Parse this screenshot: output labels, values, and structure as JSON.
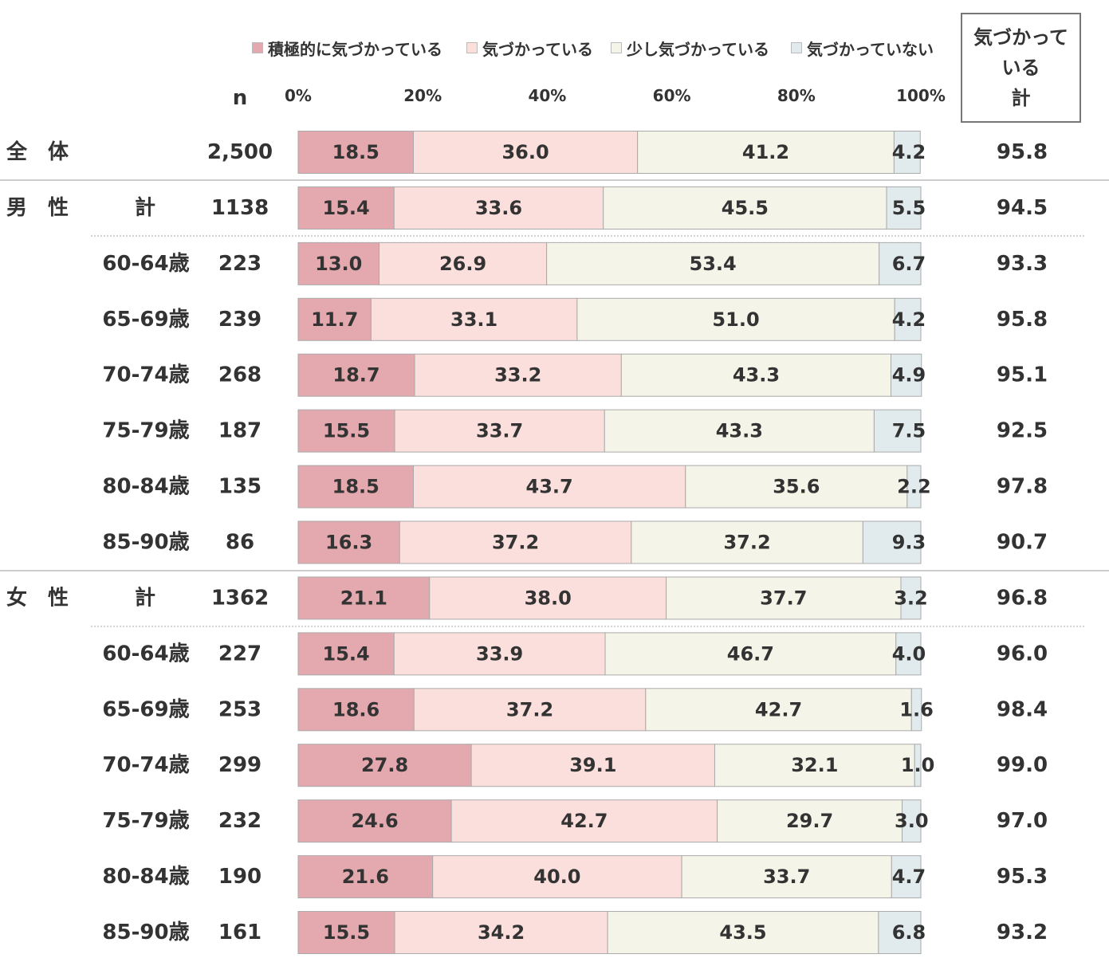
{
  "legend": [
    {
      "label": "積極的に気づかっている",
      "color": "#e4a9ae"
    },
    {
      "label": "気づかっている",
      "color": "#fbdfdc"
    },
    {
      "label": "少し気づかっている",
      "color": "#f4f4e8"
    },
    {
      "label": "気づかっていない",
      "color": "#e1ebee"
    }
  ],
  "n_header": "n",
  "total_header": [
    "気づかって",
    "いる",
    "計"
  ],
  "chart_data": {
    "type": "bar",
    "orientation": "horizontal",
    "stacked": true,
    "percent_stacked": true,
    "xlim": [
      0,
      100
    ],
    "xticks": [
      "0%",
      "20%",
      "40%",
      "60%",
      "80%",
      "100%"
    ],
    "grid": false,
    "legend_position": "top",
    "series": [
      {
        "name": "積極的に気づかっている",
        "values": [
          18.5,
          15.4,
          13.0,
          11.7,
          18.7,
          15.5,
          18.5,
          16.3,
          21.1,
          15.4,
          18.6,
          27.8,
          24.6,
          21.6,
          15.5
        ]
      },
      {
        "name": "気づかっている",
        "values": [
          36.0,
          33.6,
          26.9,
          33.1,
          33.2,
          33.7,
          43.7,
          37.2,
          38.0,
          33.9,
          37.2,
          39.1,
          42.7,
          40.0,
          34.2
        ]
      },
      {
        "name": "少し気づかっている",
        "values": [
          41.2,
          45.5,
          53.4,
          51.0,
          43.3,
          43.3,
          35.6,
          37.2,
          37.7,
          46.7,
          42.7,
          32.1,
          29.7,
          33.7,
          43.5
        ]
      },
      {
        "name": "気づかっていない",
        "values": [
          4.2,
          5.5,
          6.7,
          4.2,
          4.9,
          7.5,
          2.2,
          9.3,
          3.2,
          4.0,
          1.6,
          1.0,
          3.0,
          4.7,
          6.8
        ]
      }
    ],
    "rows": [
      {
        "group": "全　体",
        "sub": "",
        "n": "2,500",
        "total": "95.8"
      },
      {
        "group": "男　性",
        "sub": "計",
        "n": "1138",
        "total": "94.5"
      },
      {
        "group": "",
        "sub": "60-64歳",
        "n": "223",
        "total": "93.3"
      },
      {
        "group": "",
        "sub": "65-69歳",
        "n": "239",
        "total": "95.8"
      },
      {
        "group": "",
        "sub": "70-74歳",
        "n": "268",
        "total": "95.1"
      },
      {
        "group": "",
        "sub": "75-79歳",
        "n": "187",
        "total": "92.5"
      },
      {
        "group": "",
        "sub": "80-84歳",
        "n": "135",
        "total": "97.8"
      },
      {
        "group": "",
        "sub": "85-90歳",
        "n": "86",
        "total": "90.7"
      },
      {
        "group": "女　性",
        "sub": "計",
        "n": "1362",
        "total": "96.8"
      },
      {
        "group": "",
        "sub": "60-64歳",
        "n": "227",
        "total": "96.0"
      },
      {
        "group": "",
        "sub": "65-69歳",
        "n": "253",
        "total": "98.4"
      },
      {
        "group": "",
        "sub": "70-74歳",
        "n": "299",
        "total": "99.0"
      },
      {
        "group": "",
        "sub": "75-79歳",
        "n": "232",
        "total": "97.0"
      },
      {
        "group": "",
        "sub": "80-84歳",
        "n": "190",
        "total": "95.3"
      },
      {
        "group": "",
        "sub": "85-90歳",
        "n": "161",
        "total": "93.2"
      }
    ]
  }
}
